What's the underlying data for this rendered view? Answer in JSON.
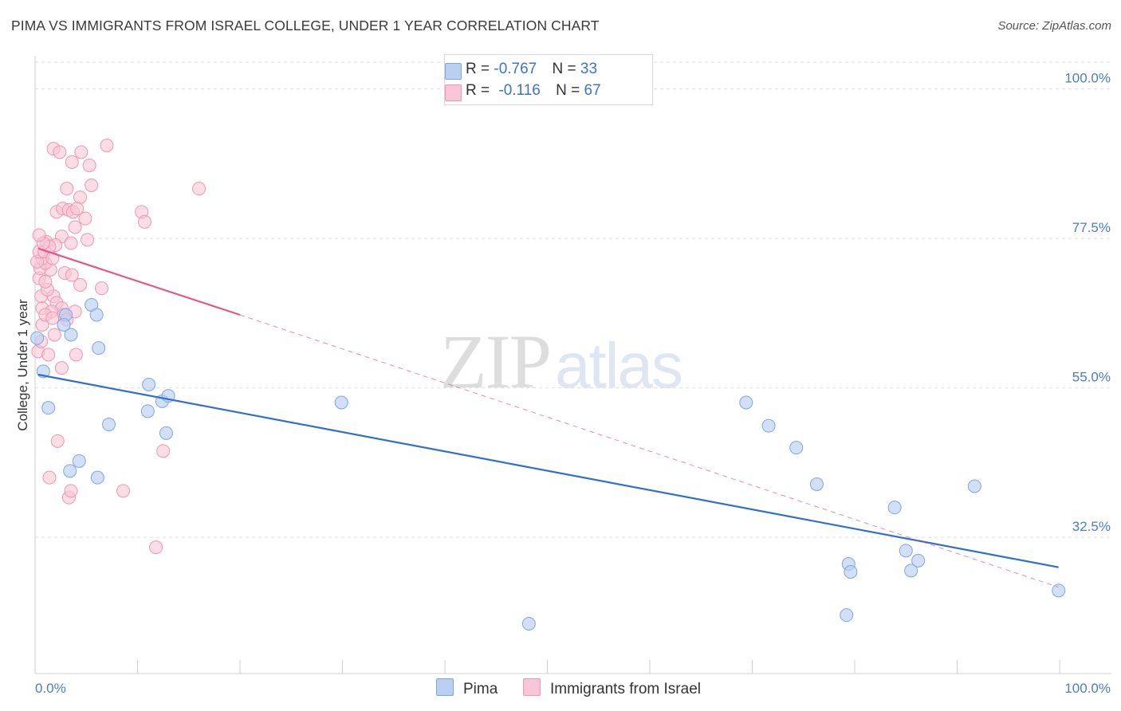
{
  "title": "PIMA VS IMMIGRANTS FROM ISRAEL COLLEGE, UNDER 1 YEAR CORRELATION CHART",
  "source": "Source: ZipAtlas.com",
  "watermark": {
    "zip": "ZIP",
    "atlas": "atlas"
  },
  "legend": {
    "pima": {
      "r_label": "R = ",
      "r_value": "-0.767",
      "n_label": "N = ",
      "n_value": "33"
    },
    "israel": {
      "r_label": "R = ",
      "r_value": "-0.116",
      "n_label": "N = ",
      "n_value": "67"
    }
  },
  "bottom_legend": {
    "pima": "Pima",
    "israel": "Immigrants from Israel"
  },
  "colors": {
    "pima_fill": "#b9d0f2",
    "pima_stroke": "#7ea6de",
    "pima_line": "#2f6fd0",
    "israel_fill": "#f8c6d6",
    "israel_stroke": "#ee95b4",
    "israel_line": "#e5578a",
    "grid": "#dddddd",
    "tick_text": "#4a7cc9"
  },
  "chart_data": {
    "type": "scatter",
    "title": "PIMA VS IMMIGRANTS FROM ISRAEL COLLEGE, UNDER 1 YEAR CORRELATION CHART",
    "xlabel": "",
    "ylabel": "College, Under 1 year",
    "xlim": [
      0,
      100
    ],
    "ylim": [
      12,
      105
    ],
    "x_tick_labels": [
      "0.0%",
      "100.0%"
    ],
    "y_ticks": [
      100.0,
      77.5,
      55.0,
      32.5
    ],
    "y_tick_labels": [
      "100.0%",
      "77.5%",
      "55.0%",
      "32.5%"
    ],
    "grid": true,
    "series": [
      {
        "name": "Pima",
        "r": -0.767,
        "n": 33,
        "points": [
          [
            0.2,
            62.5
          ],
          [
            0.8,
            57.5
          ],
          [
            1.3,
            52
          ],
          [
            3.0,
            66
          ],
          [
            3.5,
            63
          ],
          [
            2.8,
            64.5
          ],
          [
            5.5,
            67.5
          ],
          [
            6.2,
            61
          ],
          [
            6.0,
            66
          ],
          [
            7.2,
            49.5
          ],
          [
            4.3,
            44
          ],
          [
            3.4,
            42.5
          ],
          [
            6.1,
            41.5
          ],
          [
            11.0,
            51.5
          ],
          [
            11.1,
            55.5
          ],
          [
            12.8,
            48.2
          ],
          [
            12.4,
            53
          ],
          [
            13.0,
            53.8
          ],
          [
            29.9,
            52.8
          ],
          [
            48.2,
            19.5
          ],
          [
            69.4,
            52.8
          ],
          [
            71.6,
            49.3
          ],
          [
            74.3,
            46
          ],
          [
            76.3,
            40.5
          ],
          [
            79.2,
            20.8
          ],
          [
            79.4,
            28.5
          ],
          [
            79.6,
            27.3
          ],
          [
            83.9,
            37
          ],
          [
            85.0,
            30.5
          ],
          [
            85.5,
            27.5
          ],
          [
            86.2,
            29
          ],
          [
            91.7,
            40.2
          ],
          [
            99.9,
            24.5
          ]
        ],
        "trend": {
          "x0": 0.3,
          "y0": 57,
          "x1": 99.9,
          "y1": 28
        }
      },
      {
        "name": "Immigrants from Israel",
        "r": -0.116,
        "n": 67,
        "points": [
          [
            1.8,
            91
          ],
          [
            2.4,
            90.5
          ],
          [
            3.6,
            89
          ],
          [
            4.5,
            90.5
          ],
          [
            5.3,
            88.5
          ],
          [
            7.0,
            91.5
          ],
          [
            5.5,
            85.5
          ],
          [
            3.1,
            85
          ],
          [
            4.4,
            83.7
          ],
          [
            2.1,
            81.5
          ],
          [
            2.7,
            82
          ],
          [
            3.3,
            81.8
          ],
          [
            3.7,
            81.5
          ],
          [
            4.1,
            82
          ],
          [
            4.9,
            80.5
          ],
          [
            10.4,
            81.5
          ],
          [
            10.7,
            80
          ],
          [
            16.0,
            85
          ],
          [
            3.9,
            79.2
          ],
          [
            5.1,
            77.3
          ],
          [
            2.6,
            77.8
          ],
          [
            1.1,
            77
          ],
          [
            2.0,
            76.5
          ],
          [
            3.5,
            76.8
          ],
          [
            1.5,
            72.8
          ],
          [
            2.9,
            72.3
          ],
          [
            3.6,
            72
          ],
          [
            4.4,
            70.5
          ],
          [
            6.5,
            70
          ],
          [
            1.8,
            68.8
          ],
          [
            2.1,
            67.8
          ],
          [
            2.6,
            67
          ],
          [
            0.7,
            67
          ],
          [
            1.6,
            66.5
          ],
          [
            2.8,
            66
          ],
          [
            3.1,
            65.3
          ],
          [
            0.6,
            68.8
          ],
          [
            1.2,
            69.8
          ],
          [
            0.4,
            71.5
          ],
          [
            1.0,
            71
          ],
          [
            0.5,
            73
          ],
          [
            1.0,
            73.8
          ],
          [
            0.7,
            74.5
          ],
          [
            0.2,
            74
          ],
          [
            0.4,
            75.5
          ],
          [
            0.9,
            75.5
          ],
          [
            1.4,
            76.3
          ],
          [
            0.8,
            76.8
          ],
          [
            0.4,
            78
          ],
          [
            1.7,
            74.5
          ],
          [
            0.7,
            64.5
          ],
          [
            0.3,
            60.5
          ],
          [
            0.6,
            62
          ],
          [
            1.3,
            60
          ],
          [
            1.9,
            63
          ],
          [
            3.9,
            66.5
          ],
          [
            2.6,
            58
          ],
          [
            1.0,
            66
          ],
          [
            1.7,
            65.5
          ],
          [
            4.0,
            60
          ],
          [
            2.2,
            47
          ],
          [
            1.4,
            41.5
          ],
          [
            3.3,
            38.5
          ],
          [
            3.5,
            39.5
          ],
          [
            8.6,
            39.5
          ],
          [
            12.5,
            45.5
          ],
          [
            11.8,
            31
          ]
        ],
        "trend_solid": {
          "x0": 0.3,
          "y0": 76,
          "x1": 20,
          "y1": 66
        },
        "trend_dashed": {
          "x0": 20,
          "y0": 66,
          "x1": 99.9,
          "y1": 25
        }
      }
    ]
  }
}
